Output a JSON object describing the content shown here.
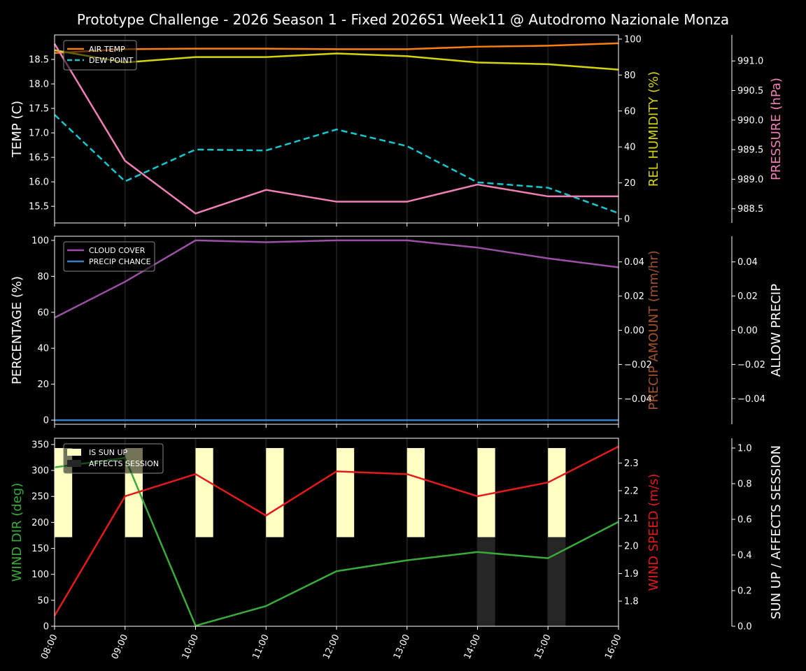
{
  "title": "Prototype Challenge  - 2026 Season 1 - Fixed 2026S1 Week11 @ Autodromo Nazionale Monza",
  "colors": {
    "background": "#000000",
    "air_temp": "#ff7f0e",
    "dew_point": "#17c7d0",
    "humidity": "#d4d40a",
    "pressure": "#f07fb6",
    "cloud": "#9b4fa6",
    "precip_chance": "#3b7fc4",
    "precip_amount": "#a0522d",
    "wind_dir": "#3aaa3a",
    "wind_speed": "#e31a1c",
    "sun_up": "#ffffc4",
    "affects_session": "#262626"
  },
  "chart_data": [
    {
      "type": "line",
      "x": [
        "08:00",
        "09:00",
        "10:00",
        "11:00",
        "12:00",
        "13:00",
        "14:00",
        "15:00",
        "16:00"
      ],
      "ylabel": "TEMP (C)",
      "ylim": [
        15.16,
        19.0
      ],
      "yticks": [
        "15.5",
        "16.0",
        "16.5",
        "17.0",
        "17.5",
        "18.0",
        "18.5"
      ],
      "y2label": "REL HUMIDITY (%)",
      "y2lim": [
        -2.3,
        102.3
      ],
      "y2ticks": [
        "0",
        "20",
        "40",
        "60",
        "80",
        "100"
      ],
      "y3label": "PRESSURE (hPa)",
      "y3lim": [
        988.26,
        991.44
      ],
      "y3ticks": [
        "988.5",
        "989.0",
        "989.5",
        "990.0",
        "990.5",
        "991.0"
      ],
      "legend": "top-left",
      "grid": "vertical",
      "series": [
        {
          "name": "AIR TEMP",
          "axis": "y",
          "style": "solid",
          "values": [
            18.63,
            18.71,
            18.72,
            18.72,
            18.71,
            18.71,
            18.76,
            18.78,
            18.83
          ]
        },
        {
          "name": "DEW POINT",
          "axis": "y",
          "style": "dashed",
          "values": [
            17.37,
            16.01,
            16.66,
            16.64,
            17.07,
            16.73,
            15.99,
            15.88,
            15.36
          ]
        },
        {
          "axis": "y2",
          "style": "solid",
          "values": [
            93.8,
            87,
            90,
            90,
            92,
            90.5,
            87,
            86,
            83
          ]
        },
        {
          "axis": "y3",
          "style": "solid",
          "values": [
            991.29,
            989.31,
            988.42,
            988.82,
            988.62,
            988.62,
            988.91,
            988.71,
            988.71
          ]
        }
      ]
    },
    {
      "type": "line",
      "x": [
        "08:00",
        "09:00",
        "10:00",
        "11:00",
        "12:00",
        "13:00",
        "14:00",
        "15:00",
        "16:00"
      ],
      "ylabel": "PERCENTAGE (%)",
      "ylim": [
        -2.3,
        102.3
      ],
      "yticks": [
        "0",
        "20",
        "40",
        "60",
        "80",
        "100"
      ],
      "y2label": "PRECIP AMOUNT (mm/hr)",
      "y2lim": [
        -0.055,
        0.055
      ],
      "y2ticks": [
        "−0.04",
        "−0.02",
        "0.00",
        "0.02",
        "0.04"
      ],
      "y3label": "ALLOW PRECIP",
      "y3lim": [
        -0.055,
        0.055
      ],
      "y3ticks": [
        "−0.04",
        "−0.02",
        "0.00",
        "0.02",
        "0.04"
      ],
      "legend": "top-left",
      "grid": "vertical",
      "series": [
        {
          "name": "CLOUD COVER",
          "axis": "y",
          "style": "solid",
          "values": [
            57,
            77,
            100,
            99,
            100,
            100,
            96,
            90,
            85
          ]
        },
        {
          "name": "PRECIP CHANCE",
          "axis": "y",
          "style": "solid",
          "values": [
            0,
            0,
            0,
            0,
            0,
            0,
            0,
            0,
            0
          ]
        }
      ]
    },
    {
      "type": "line",
      "x": [
        "08:00",
        "09:00",
        "10:00",
        "11:00",
        "12:00",
        "13:00",
        "14:00",
        "15:00",
        "16:00"
      ],
      "ylabel": "WIND DIR (deg)",
      "ylim": [
        0,
        362
      ],
      "yticks": [
        "0",
        "50",
        "100",
        "150",
        "200",
        "250",
        "300",
        "350"
      ],
      "y2label": "WIND SPEED (m/s)",
      "y2lim": [
        1.709,
        2.39
      ],
      "y2ticks": [
        "1.8",
        "1.9",
        "2.0",
        "2.1",
        "2.2",
        "2.3"
      ],
      "y3label": "SUN UP / AFFECTS SESSION",
      "y3lim": [
        0,
        1.055
      ],
      "y3ticks": [
        "0.0",
        "0.2",
        "0.4",
        "0.6",
        "0.8",
        "1.0"
      ],
      "legend": "top-left",
      "grid": "vertical",
      "series": [
        {
          "axis": "y",
          "style": "solid",
          "values": [
            306,
            324,
            1,
            39,
            106,
            127,
            143,
            131,
            201
          ]
        },
        {
          "axis": "y2",
          "style": "solid",
          "values": [
            1.747,
            2.18,
            2.26,
            2.11,
            2.27,
            2.26,
            2.18,
            2.23,
            2.36
          ]
        }
      ],
      "bars": [
        {
          "name": "IS SUN UP",
          "axis": "y3",
          "values": [
            1,
            1,
            1,
            1,
            1,
            1,
            1,
            1,
            0
          ]
        },
        {
          "name": "AFFECTS SESSION",
          "axis": "y3",
          "values": [
            0,
            0,
            0,
            0,
            0,
            0,
            1,
            1,
            0
          ]
        }
      ]
    }
  ]
}
